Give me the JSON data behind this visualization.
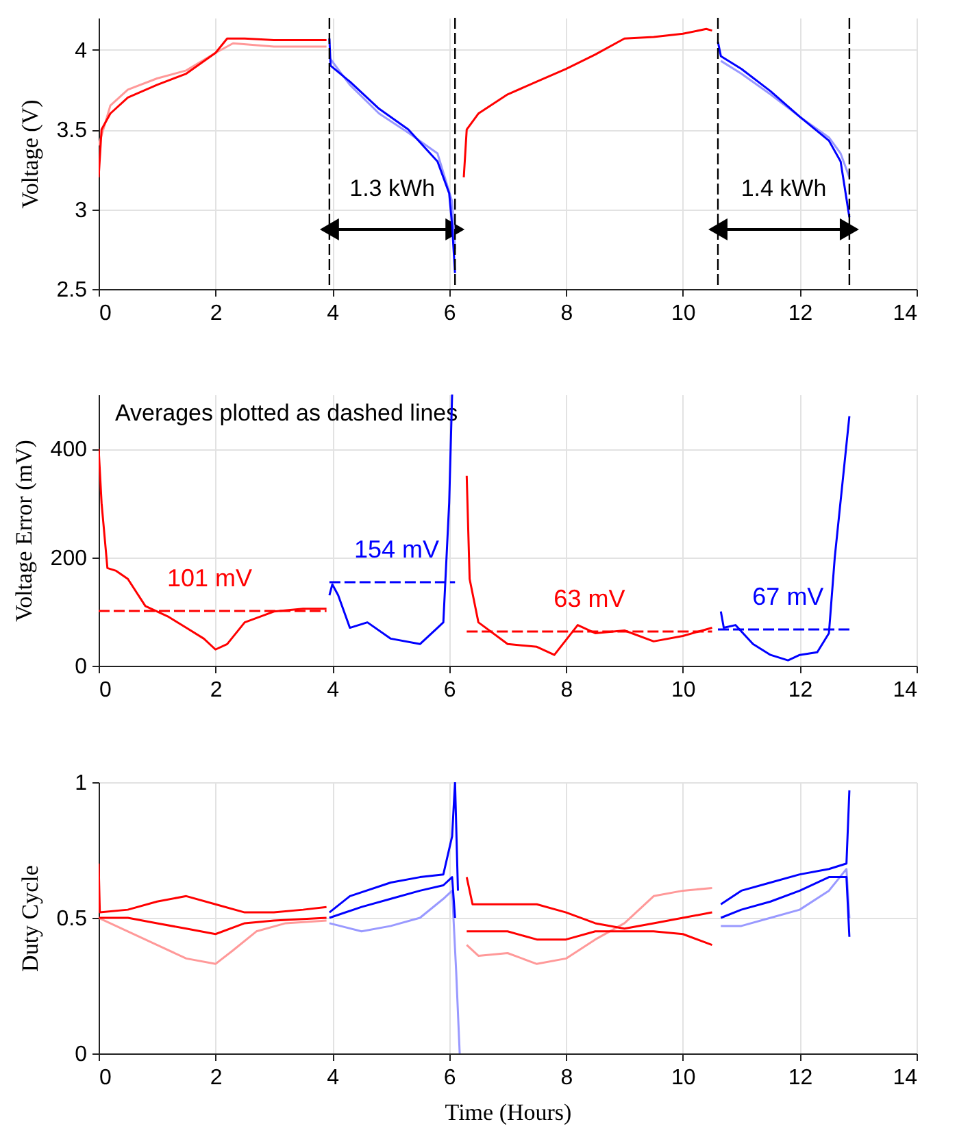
{
  "chart_data": [
    {
      "type": "line",
      "ylabel": "Voltage (V)",
      "xlim": [
        0,
        14
      ],
      "xticks": [
        0,
        2,
        4,
        6,
        8,
        10,
        12,
        14
      ],
      "ylim": [
        2.5,
        4.2
      ],
      "yticks": [
        2.5,
        3,
        3.5,
        4
      ],
      "grid": true,
      "line_style": "solid",
      "series": [
        {
          "color": "#ff9999",
          "x": [
            0,
            0.2,
            0.5,
            1,
            1.5,
            2,
            2.3,
            3,
            3.9
          ],
          "values": [
            3.4,
            3.65,
            3.75,
            3.82,
            3.87,
            3.98,
            4.04,
            4.02,
            4.02
          ]
        },
        {
          "color": "#ff0000",
          "x": [
            0,
            0.05,
            0.2,
            0.5,
            1,
            1.5,
            2,
            2.2,
            2.5,
            3,
            3.5,
            3.9
          ],
          "values": [
            3.2,
            3.5,
            3.6,
            3.7,
            3.78,
            3.85,
            3.98,
            4.07,
            4.07,
            4.06,
            4.06,
            4.06
          ]
        },
        {
          "color": "#9999ff",
          "x": [
            3.95,
            4.3,
            4.8,
            5.3,
            5.8,
            6.05,
            6.1
          ],
          "values": [
            3.95,
            3.78,
            3.6,
            3.48,
            3.35,
            3.05,
            2.75
          ]
        },
        {
          "color": "#0000ff",
          "x": [
            3.95,
            3.97,
            4.3,
            4.8,
            5.3,
            5.8,
            6,
            6.05,
            6.1
          ],
          "values": [
            4.07,
            3.9,
            3.8,
            3.63,
            3.5,
            3.3,
            3.1,
            2.9,
            2.6
          ]
        },
        {
          "color": "#ff0000",
          "x": [
            6.25,
            6.3,
            6.5,
            7,
            7.5,
            8,
            8.5,
            9,
            9.5,
            10,
            10.4,
            10.5
          ],
          "values": [
            3.2,
            3.5,
            3.6,
            3.72,
            3.8,
            3.88,
            3.97,
            4.07,
            4.08,
            4.1,
            4.13,
            4.12
          ]
        },
        {
          "color": "#9999ff",
          "x": [
            10.65,
            11,
            11.5,
            12,
            12.5,
            12.7,
            12.85
          ],
          "values": [
            3.93,
            3.85,
            3.72,
            3.58,
            3.45,
            3.35,
            3.2
          ]
        },
        {
          "color": "#0000ff",
          "x": [
            10.6,
            10.65,
            11,
            11.5,
            12,
            12.5,
            12.7,
            12.85
          ],
          "values": [
            4.05,
            3.96,
            3.88,
            3.74,
            3.58,
            3.43,
            3.3,
            2.95
          ]
        }
      ],
      "ref_lines": [
        {
          "axis": "x",
          "value": 3.95,
          "color": "#000000",
          "line_style": "dashed"
        },
        {
          "axis": "x",
          "value": 6.1,
          "color": "#000000",
          "line_style": "dashed"
        },
        {
          "axis": "x",
          "value": 10.6,
          "color": "#000000",
          "line_style": "dashed"
        },
        {
          "axis": "x",
          "value": 12.85,
          "color": "#000000",
          "line_style": "dashed"
        }
      ],
      "annotations": [
        "1.3 kWh",
        "1.4 kWh"
      ]
    },
    {
      "type": "line",
      "ylabel": "Voltage Error (mV)",
      "xlim": [
        0,
        14
      ],
      "xticks": [
        0,
        2,
        4,
        6,
        8,
        10,
        12,
        14
      ],
      "ylim": [
        0,
        500
      ],
      "yticks": [
        0,
        200,
        400
      ],
      "grid": true,
      "series": [
        {
          "color": "#ff0000",
          "x": [
            0,
            0.05,
            0.15,
            0.3,
            0.5,
            0.8,
            1.2,
            1.5,
            1.8,
            2,
            2.2,
            2.5,
            3,
            3.5,
            3.9
          ],
          "values": [
            400,
            300,
            180,
            175,
            160,
            110,
            90,
            70,
            50,
            30,
            40,
            80,
            100,
            105,
            105
          ]
        },
        {
          "color": "#0000ff",
          "x": [
            3.95,
            4,
            4.1,
            4.3,
            4.6,
            5,
            5.5,
            5.8,
            5.9,
            6,
            6.05
          ],
          "values": [
            130,
            150,
            130,
            70,
            80,
            50,
            40,
            70,
            80,
            300,
            500
          ]
        },
        {
          "color": "#ff0000",
          "x": [
            6.3,
            6.35,
            6.5,
            7,
            7.5,
            7.8,
            8.2,
            8.5,
            9,
            9.5,
            10,
            10.5
          ],
          "values": [
            350,
            160,
            80,
            40,
            35,
            20,
            75,
            60,
            65,
            45,
            55,
            70
          ]
        },
        {
          "color": "#0000ff",
          "x": [
            10.65,
            10.7,
            10.9,
            11.2,
            11.5,
            11.8,
            12,
            12.3,
            12.5,
            12.6,
            12.85
          ],
          "values": [
            100,
            70,
            75,
            40,
            20,
            10,
            20,
            25,
            60,
            200,
            460
          ]
        },
        {
          "type": "line",
          "line_style": "dashed",
          "color": "#ff0000",
          "x": [
            0,
            1.9,
            3.9
          ],
          "values": [
            101,
            101,
            101
          ],
          "value_labels": [
            null,
            "101 mV",
            null
          ]
        },
        {
          "type": "line",
          "line_style": "dashed",
          "color": "#0000ff",
          "x": [
            3.95,
            5.1,
            6.1
          ],
          "values": [
            154,
            154,
            154
          ],
          "value_labels": [
            null,
            "154 mV",
            null
          ]
        },
        {
          "type": "line",
          "line_style": "dashed",
          "color": "#ff0000",
          "x": [
            6.3,
            8.4,
            10.5
          ],
          "values": [
            63,
            63,
            63
          ],
          "value_labels": [
            null,
            "63 mV",
            null
          ]
        },
        {
          "type": "line",
          "line_style": "dashed",
          "color": "#0000ff",
          "x": [
            10.6,
            11.8,
            12.85
          ],
          "values": [
            67,
            67,
            67
          ],
          "value_labels": [
            null,
            "67 mV",
            null
          ]
        }
      ],
      "annotations": [
        "Averages plotted as dashed lines"
      ]
    },
    {
      "type": "line",
      "xlabel": "Time (Hours)",
      "ylabel": "Duty Cycle",
      "xlim": [
        0,
        14
      ],
      "xticks": [
        0,
        2,
        4,
        6,
        8,
        10,
        12,
        14
      ],
      "ylim": [
        0,
        1
      ],
      "yticks": [
        0,
        0.5,
        1
      ],
      "grid": true,
      "series": [
        {
          "color": "#ff9999",
          "x": [
            0,
            0.5,
            1,
            1.5,
            2,
            2.3,
            2.7,
            3.2,
            3.9
          ],
          "values": [
            0.5,
            0.45,
            0.4,
            0.35,
            0.33,
            0.38,
            0.45,
            0.48,
            0.49
          ]
        },
        {
          "color": "#ff0000",
          "x": [
            0,
            0.5,
            1,
            1.5,
            2,
            2.5,
            3,
            3.9
          ],
          "values": [
            0.5,
            0.5,
            0.48,
            0.46,
            0.44,
            0.48,
            0.49,
            0.5
          ]
        },
        {
          "color": "#ff0000",
          "x": [
            0,
            0.02,
            0.5,
            1,
            1.5,
            2,
            2.5,
            3,
            3.5,
            3.9
          ],
          "values": [
            0.7,
            0.52,
            0.53,
            0.56,
            0.58,
            0.55,
            0.52,
            0.52,
            0.53,
            0.54
          ]
        },
        {
          "color": "#9999ff",
          "x": [
            3.95,
            4.5,
            5,
            5.5,
            5.9,
            6.05,
            6.12,
            6.18
          ],
          "values": [
            0.48,
            0.45,
            0.47,
            0.5,
            0.57,
            0.6,
            0.3,
            0
          ]
        },
        {
          "color": "#0000ff",
          "x": [
            3.95,
            4.5,
            5,
            5.5,
            5.9,
            6.05,
            6.1
          ],
          "values": [
            0.5,
            0.54,
            0.57,
            0.6,
            0.62,
            0.65,
            0.5
          ]
        },
        {
          "color": "#0000ff",
          "x": [
            3.95,
            4.3,
            5,
            5.5,
            5.9,
            6.05,
            6.1,
            6.15
          ],
          "values": [
            0.52,
            0.58,
            0.63,
            0.65,
            0.66,
            0.8,
            1,
            0.6
          ]
        },
        {
          "color": "#ff9999",
          "x": [
            6.3,
            6.5,
            7,
            7.5,
            8,
            8.5,
            9,
            9.5,
            10,
            10.5
          ],
          "values": [
            0.4,
            0.36,
            0.37,
            0.33,
            0.35,
            0.42,
            0.48,
            0.58,
            0.6,
            0.61
          ]
        },
        {
          "color": "#ff0000",
          "x": [
            6.3,
            7,
            7.5,
            8,
            8.5,
            9,
            9.5,
            10,
            10.5
          ],
          "values": [
            0.45,
            0.45,
            0.42,
            0.42,
            0.45,
            0.45,
            0.45,
            0.44,
            0.4
          ]
        },
        {
          "color": "#ff0000",
          "x": [
            6.3,
            6.4,
            7,
            7.5,
            8,
            8.5,
            9,
            9.5,
            10,
            10.5
          ],
          "values": [
            0.65,
            0.55,
            0.55,
            0.55,
            0.52,
            0.48,
            0.46,
            0.48,
            0.5,
            0.52
          ]
        },
        {
          "color": "#9999ff",
          "x": [
            10.65,
            11,
            11.5,
            12,
            12.5,
            12.8,
            12.85
          ],
          "values": [
            0.47,
            0.47,
            0.5,
            0.53,
            0.6,
            0.68,
            0.5
          ]
        },
        {
          "color": "#0000ff",
          "x": [
            10.65,
            11,
            11.5,
            12,
            12.5,
            12.8,
            12.85
          ],
          "values": [
            0.5,
            0.53,
            0.56,
            0.6,
            0.65,
            0.65,
            0.43
          ]
        },
        {
          "color": "#0000ff",
          "x": [
            10.65,
            11,
            11.5,
            12,
            12.5,
            12.8,
            12.85
          ],
          "values": [
            0.55,
            0.6,
            0.63,
            0.66,
            0.68,
            0.7,
            0.97
          ]
        }
      ]
    }
  ]
}
